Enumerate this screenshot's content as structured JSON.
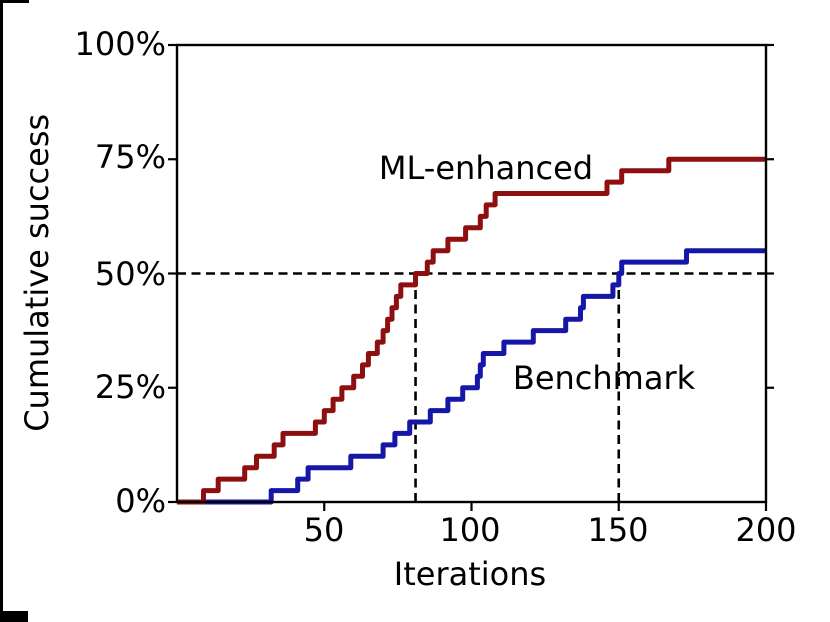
{
  "chart_data": {
    "type": "step",
    "title": "",
    "xlabel": "Iterations",
    "ylabel": "Cumulative success",
    "xlim": [
      0,
      200
    ],
    "ylim": [
      0,
      100
    ],
    "xticks": [
      50,
      100,
      150,
      200
    ],
    "xtick_labels": [
      "50",
      "100",
      "150",
      "200"
    ],
    "yticks": [
      0,
      25,
      50,
      75,
      100
    ],
    "ytick_labels": [
      "0%",
      "25%",
      "50%",
      "75%",
      "100%"
    ],
    "grid": false,
    "legend_position": "inline-text-labels",
    "axis_color": "#000000",
    "series": [
      {
        "name": "ML-enhanced",
        "color": "#8e0f0f",
        "start": [
          0,
          0
        ],
        "end_x": 200,
        "events": [
          [
            9,
            2.5
          ],
          [
            14,
            5
          ],
          [
            23,
            7.5
          ],
          [
            27,
            10
          ],
          [
            33,
            12.5
          ],
          [
            36,
            15
          ],
          [
            47,
            17.5
          ],
          [
            50,
            20
          ],
          [
            53,
            22.5
          ],
          [
            56,
            25
          ],
          [
            60,
            27.5
          ],
          [
            63,
            30
          ],
          [
            65,
            32.5
          ],
          [
            68,
            35
          ],
          [
            70,
            37.5
          ],
          [
            71.5,
            40
          ],
          [
            73,
            42.5
          ],
          [
            74.5,
            45
          ],
          [
            76,
            47.5
          ],
          [
            81,
            50
          ],
          [
            85,
            52.5
          ],
          [
            87,
            55
          ],
          [
            92,
            57.5
          ],
          [
            98,
            60
          ],
          [
            103,
            62.5
          ],
          [
            105,
            65
          ],
          [
            108,
            67.5
          ],
          [
            146,
            70
          ],
          [
            151,
            72.5
          ],
          [
            167,
            75
          ]
        ]
      },
      {
        "name": "Benchmark",
        "color": "#1616a7",
        "start": [
          0,
          0
        ],
        "end_x": 200,
        "events": [
          [
            32,
            2.5
          ],
          [
            41,
            5
          ],
          [
            44.5,
            7.5
          ],
          [
            59,
            10
          ],
          [
            70,
            12.5
          ],
          [
            74,
            15
          ],
          [
            79,
            17.5
          ],
          [
            86,
            20
          ],
          [
            92,
            22.5
          ],
          [
            97,
            25
          ],
          [
            102,
            27.5
          ],
          [
            103,
            30
          ],
          [
            104,
            32.5
          ],
          [
            111,
            35
          ],
          [
            121,
            37.5
          ],
          [
            132,
            40
          ],
          [
            137,
            42.5
          ],
          [
            138,
            45
          ],
          [
            148,
            47.5
          ],
          [
            150,
            50
          ],
          [
            151,
            52.5
          ],
          [
            173,
            55
          ]
        ]
      }
    ],
    "reference_lines": {
      "style": "dashed",
      "color": "#000000",
      "horizontal_y": 50,
      "vertical_x": [
        81,
        150
      ],
      "vertical_y_max": 50
    }
  }
}
